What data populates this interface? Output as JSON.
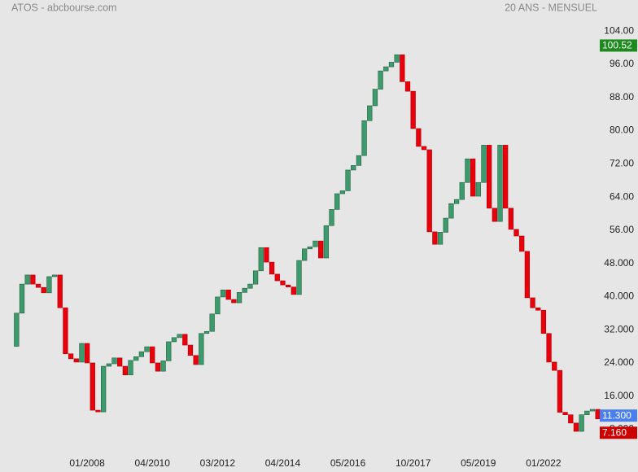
{
  "chart_data": {
    "type": "line-break",
    "title": "ATOS - abcbourse.com",
    "subtitle": "20 ANS - MENSUEL",
    "open": 28,
    "values": [
      36,
      43,
      45.2,
      43,
      42.2,
      40.9,
      44.8,
      45.2,
      37.3,
      26.2,
      25,
      24.2,
      28.7,
      24,
      12.6,
      12.2,
      23.2,
      23.8,
      25.2,
      23.2,
      21.1,
      24.6,
      25.5,
      26.7,
      27.9,
      24,
      22,
      24.5,
      29.1,
      30.1,
      30.9,
      28.3,
      25.8,
      23.6,
      31.1,
      31.6,
      35.8,
      39.9,
      41.6,
      39.3,
      38.5,
      41,
      42,
      43,
      46.2,
      51.8,
      48.3,
      45.4,
      43.8,
      42.8,
      42.3,
      40.5,
      48.7,
      51.5,
      52,
      53.4,
      49.3,
      57.1,
      61,
      64.8,
      65.5,
      70.5,
      71.6,
      74,
      82.4,
      86,
      90,
      94.4,
      95.4,
      96.5,
      98.3,
      91.8,
      89.5,
      80.5,
      76.2,
      75.4,
      55.6,
      52.6,
      55.5,
      58.9,
      62.4,
      63.4,
      67.5,
      73.2,
      64.2,
      67.5,
      76.5,
      61.3,
      58.1,
      76.5,
      61.3,
      56.2,
      54.6,
      50.9,
      39.7,
      37.3,
      36.7,
      31.1,
      24.2,
      22.2,
      12.1,
      11.5,
      9.5,
      7.5,
      11.5,
      12.4,
      12.8,
      10.5
    ],
    "up_color": "#3d9a6c",
    "down_color": "#e8000b",
    "xlim": [
      0,
      108
    ],
    "xticks": [
      {
        "value": 13,
        "label": "01/2008"
      },
      {
        "value": 25,
        "label": "04/2010"
      },
      {
        "value": 37,
        "label": "03/2012"
      },
      {
        "value": 49,
        "label": "04/2014"
      },
      {
        "value": 61,
        "label": "05/2016"
      },
      {
        "value": 73,
        "label": "10/2017"
      },
      {
        "value": 85,
        "label": "05/2019"
      },
      {
        "value": 97,
        "label": "01/2022"
      }
    ],
    "ylim": [
      -2.3,
      111.5
    ],
    "yticks": [
      {
        "value": 104,
        "label": "104.00"
      },
      {
        "value": 96,
        "label": "96.00"
      },
      {
        "value": 88,
        "label": "88.00"
      },
      {
        "value": 80,
        "label": "80.00"
      },
      {
        "value": 72,
        "label": "72.00"
      },
      {
        "value": 64,
        "label": "64.00"
      },
      {
        "value": 56,
        "label": "56.00"
      },
      {
        "value": 48,
        "label": "48.000"
      },
      {
        "value": 40,
        "label": "40.000"
      },
      {
        "value": 32,
        "label": "32.000"
      },
      {
        "value": 24,
        "label": "24.000"
      },
      {
        "value": 16,
        "label": "16.000"
      },
      {
        "value": 8,
        "label": "8.000"
      }
    ],
    "markers": [
      {
        "value": 100.52,
        "label": "100.52",
        "color": "#1c8a1c"
      },
      {
        "value": 11.3,
        "label": "11.300",
        "color": "#4a80ee"
      },
      {
        "value": 7.16,
        "label": "7.160",
        "color": "#cc0000"
      }
    ]
  }
}
